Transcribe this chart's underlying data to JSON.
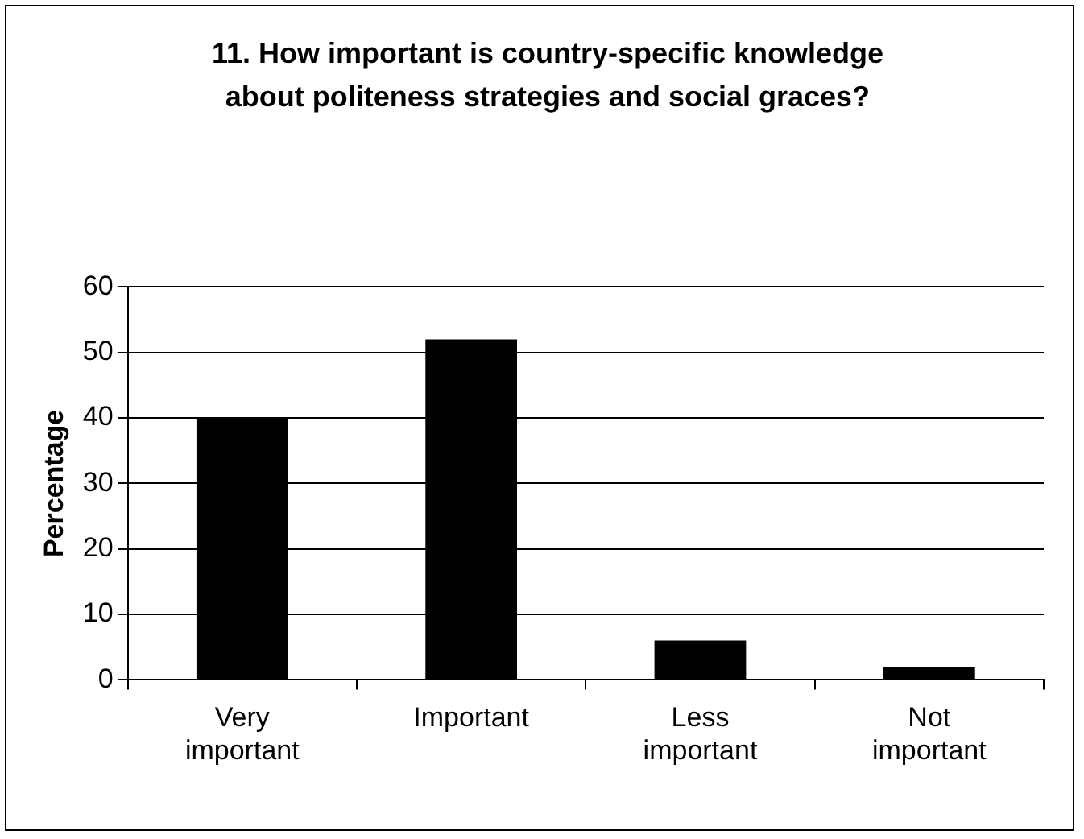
{
  "chart_data": {
    "type": "bar",
    "title": "11. How important is country-specific knowledge about politeness strategies and social graces?",
    "ylabel": "Percentage",
    "categories": [
      "Very important",
      "Important",
      "Less important",
      "Not important"
    ],
    "values": [
      40,
      52,
      6,
      2
    ],
    "color": "#000000",
    "ylim": [
      0,
      60
    ],
    "yticks": [
      0,
      10,
      20,
      30,
      40,
      50,
      60
    ],
    "grid": "y",
    "legend": false
  }
}
